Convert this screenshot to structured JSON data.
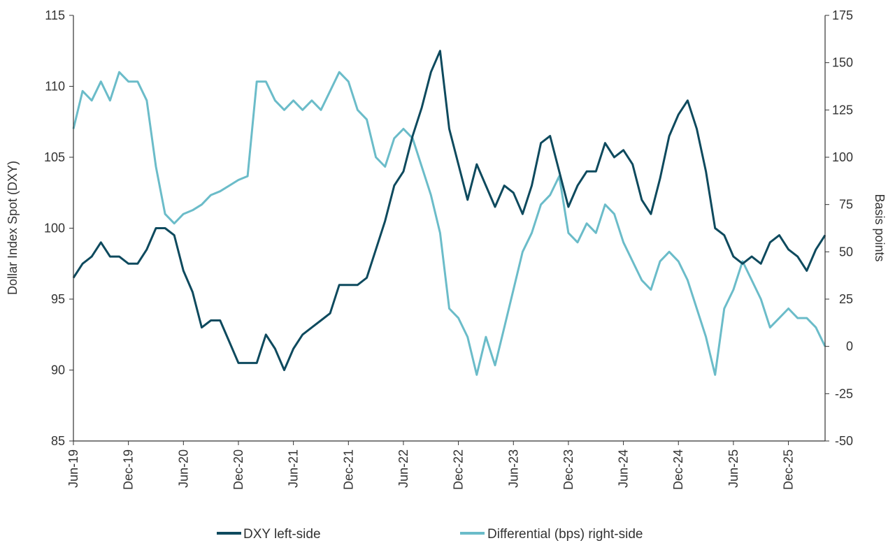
{
  "chart_data": {
    "type": "line",
    "title": "",
    "ylabel_left": "Dollar Index Spot (DXY)",
    "ylabel_right": "Basis points",
    "ylim_left": [
      85,
      115
    ],
    "ylim_right": [
      -50,
      175
    ],
    "yticks_left": [
      "85",
      "90",
      "95",
      "100",
      "105",
      "110",
      "115"
    ],
    "yticks_right": [
      "-50",
      "-25",
      "0",
      "25",
      "50",
      "75",
      "100",
      "125",
      "150",
      "175"
    ],
    "xticks": [
      "Jun-19",
      "Dec-19",
      "Jun-20",
      "Dec-20",
      "Jun-21",
      "Dec-21",
      "Jun-22",
      "Dec-22",
      "Jun-23",
      "Dec-23",
      "Jun-24",
      "Dec-24",
      "Jun-25",
      "Dec-25"
    ],
    "x_start": "Jun-19",
    "x_frequency": "monthly",
    "grid": false,
    "legend_position": "bottom",
    "colors": {
      "dxy": "#0e4a5e",
      "diff": "#6bbcc9"
    },
    "series": [
      {
        "name": "DXY left-side",
        "axis": "left",
        "values": [
          96.5,
          97.5,
          98,
          99,
          98,
          98,
          97.5,
          97.5,
          98.5,
          100,
          100,
          99.5,
          97,
          95.5,
          93,
          93.5,
          93.5,
          92,
          90.5,
          90.5,
          90.5,
          92.5,
          91.5,
          90,
          91.5,
          92.5,
          93,
          93.5,
          94,
          96,
          96,
          96,
          96.5,
          98.5,
          100.5,
          103,
          104,
          106.5,
          108.5,
          111,
          112.5,
          107,
          104.5,
          102,
          104.5,
          103,
          101.5,
          103,
          102.5,
          101,
          103,
          106,
          106.5,
          104,
          101.5,
          103,
          104,
          104,
          106,
          105,
          105.5,
          104.5,
          102,
          101,
          103.5,
          106.5,
          108,
          109,
          107,
          104,
          100,
          99.5,
          98,
          97.5,
          98,
          97.5,
          99,
          99.5,
          98.5,
          98,
          97,
          98.5,
          99.5
        ]
      },
      {
        "name": "Differential (bps) right-side",
        "axis": "right",
        "values": [
          115,
          135,
          130,
          140,
          130,
          145,
          140,
          140,
          130,
          95,
          70,
          65,
          70,
          72,
          75,
          80,
          82,
          85,
          88,
          90,
          140,
          140,
          130,
          125,
          130,
          125,
          130,
          125,
          135,
          145,
          140,
          125,
          120,
          100,
          95,
          110,
          115,
          110,
          95,
          80,
          60,
          20,
          15,
          5,
          -15,
          5,
          -10,
          10,
          30,
          50,
          60,
          75,
          80,
          90,
          60,
          55,
          65,
          60,
          75,
          70,
          55,
          45,
          35,
          30,
          45,
          50,
          45,
          35,
          20,
          5,
          -15,
          20,
          30,
          45,
          35,
          25,
          10,
          15,
          20,
          15,
          15,
          10,
          0
        ]
      }
    ]
  }
}
